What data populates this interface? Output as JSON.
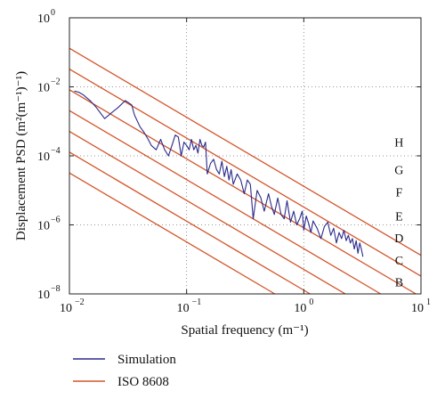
{
  "chart_data": {
    "type": "line",
    "xlabel": "Spatial frequency (m⁻¹)",
    "ylabel": "Displacement PSD (m²(m⁻¹)⁻¹)",
    "x_scale": "log",
    "y_scale": "log",
    "xlim": [
      0.01,
      10
    ],
    "ylim": [
      1e-08,
      1
    ],
    "x_ticks": [
      {
        "value": 0.01,
        "base": "10",
        "exp": "−2"
      },
      {
        "value": 0.1,
        "base": "10",
        "exp": "−1"
      },
      {
        "value": 1,
        "base": "10",
        "exp": "0"
      },
      {
        "value": 10,
        "base": "10",
        "exp": "1"
      }
    ],
    "y_ticks": [
      {
        "value": 1e-08,
        "base": "10",
        "exp": "−8"
      },
      {
        "value": 1e-06,
        "base": "10",
        "exp": "−6"
      },
      {
        "value": 0.0001,
        "base": "10",
        "exp": "−4"
      },
      {
        "value": 0.01,
        "base": "10",
        "exp": "−2"
      },
      {
        "value": 1,
        "base": "10",
        "exp": "0"
      }
    ],
    "grid": true,
    "grid_style": "dotted",
    "legend_position": "below",
    "series": [
      {
        "name": "Simulation",
        "color": "#2a2a8a",
        "x": [
          0.011,
          0.012,
          0.013,
          0.015,
          0.017,
          0.02,
          0.023,
          0.026,
          0.03,
          0.034,
          0.036,
          0.04,
          0.043,
          0.047,
          0.05,
          0.055,
          0.06,
          0.065,
          0.07,
          0.075,
          0.08,
          0.085,
          0.09,
          0.095,
          0.1,
          0.105,
          0.11,
          0.115,
          0.12,
          0.125,
          0.13,
          0.135,
          0.14,
          0.145,
          0.15,
          0.16,
          0.17,
          0.18,
          0.19,
          0.2,
          0.21,
          0.22,
          0.23,
          0.24,
          0.25,
          0.27,
          0.29,
          0.31,
          0.33,
          0.35,
          0.37,
          0.4,
          0.43,
          0.46,
          0.5,
          0.53,
          0.56,
          0.6,
          0.64,
          0.68,
          0.72,
          0.77,
          0.82,
          0.87,
          0.92,
          0.97,
          1.0,
          1.05,
          1.1,
          1.15,
          1.2,
          1.3,
          1.4,
          1.5,
          1.6,
          1.7,
          1.8,
          1.9,
          2.0,
          2.1,
          2.2,
          2.3,
          2.4,
          2.5,
          2.6,
          2.7,
          2.8,
          2.9,
          3.0,
          3.1,
          3.2
        ],
        "y": [
          0.0075,
          0.007,
          0.006,
          0.004,
          0.0025,
          0.0012,
          0.0018,
          0.0025,
          0.004,
          0.003,
          0.0015,
          0.0007,
          0.0005,
          0.0003,
          0.0002,
          0.00015,
          0.0003,
          0.00015,
          0.0001,
          0.0002,
          0.0004,
          0.00035,
          0.0001,
          0.00025,
          0.0002,
          0.00015,
          0.0003,
          0.00015,
          0.0002,
          0.00012,
          0.0003,
          0.0002,
          0.00018,
          0.00025,
          3e-05,
          6e-05,
          8e-05,
          4e-05,
          3e-05,
          7e-05,
          2.5e-05,
          5e-05,
          2e-05,
          4e-05,
          1.5e-05,
          3e-05,
          2e-05,
          8e-06,
          2e-05,
          1.5e-05,
          1.5e-06,
          1e-05,
          6e-06,
          2.5e-06,
          8e-06,
          3.5e-06,
          2e-06,
          6e-06,
          2e-06,
          1.5e-06,
          5e-06,
          1.2e-06,
          2.5e-06,
          1e-06,
          1.5e-06,
          2.5e-06,
          7e-07,
          1.8e-06,
          1.1e-06,
          6e-07,
          1.3e-06,
          8e-07,
          4e-07,
          9e-07,
          1.2e-06,
          5e-07,
          8e-07,
          3e-07,
          6e-07,
          4e-07,
          7e-07,
          3.5e-07,
          5e-07,
          3e-07,
          4e-07,
          2e-07,
          3.5e-07,
          1.5e-07,
          3e-07,
          2e-07,
          1.2e-07
        ]
      },
      {
        "name": "ISO 8608",
        "color": "#d2552a",
        "type": "lines",
        "slope": -2,
        "lines": [
          {
            "class": "B",
            "x": [
              0.01,
              10
            ],
            "y": [
              3.2e-05,
              3.2e-11
            ]
          },
          {
            "class": "C",
            "x": [
              0.01,
              10
            ],
            "y": [
              0.000128,
              1.28e-10
            ]
          },
          {
            "class": "D",
            "x": [
              0.01,
              10
            ],
            "y": [
              0.000512,
              5.12e-10
            ]
          },
          {
            "class": "E",
            "x": [
              0.01,
              10
            ],
            "y": [
              0.002048,
              2.048e-09
            ]
          },
          {
            "class": "F",
            "x": [
              0.01,
              10
            ],
            "y": [
              0.008192,
              8.192e-09
            ]
          },
          {
            "class": "G",
            "x": [
              0.01,
              10
            ],
            "y": [
              0.032768,
              3.2768e-08
            ]
          },
          {
            "class": "H",
            "x": [
              0.01,
              10
            ],
            "y": [
              0.131072,
              1.31072e-07
            ]
          }
        ]
      }
    ],
    "class_labels": [
      {
        "text": "H",
        "x": 6.5,
        "y": 0.00025
      },
      {
        "text": "G",
        "x": 6.5,
        "y": 4e-05
      },
      {
        "text": "F",
        "x": 6.5,
        "y": 9e-06
      },
      {
        "text": "E",
        "x": 6.5,
        "y": 1.8e-06
      },
      {
        "text": "D",
        "x": 6.5,
        "y": 4.2e-07
      },
      {
        "text": "C",
        "x": 6.5,
        "y": 9.5e-08
      },
      {
        "text": "B",
        "x": 6.5,
        "y": 2.2e-08
      }
    ]
  }
}
